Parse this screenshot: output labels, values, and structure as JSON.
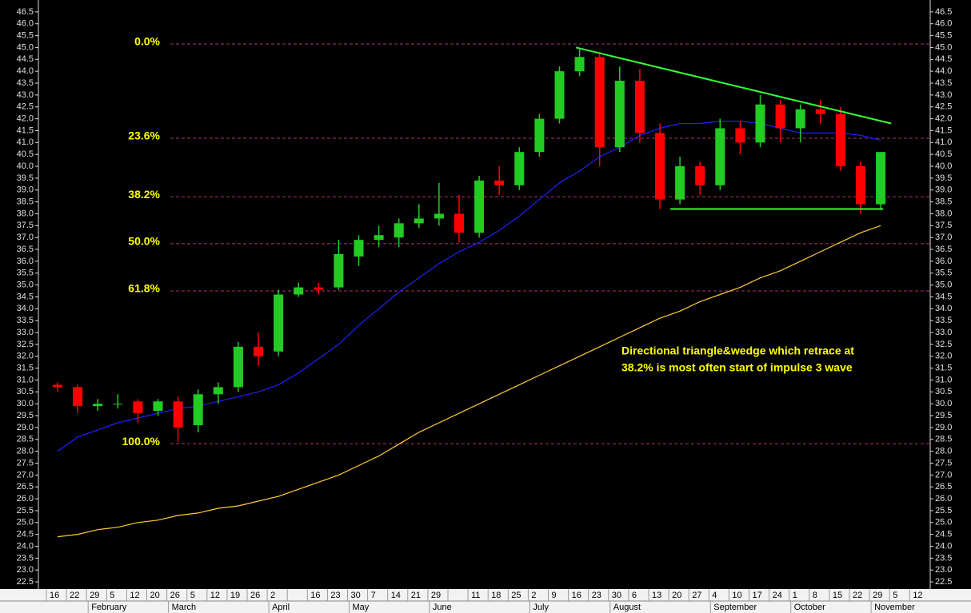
{
  "chart_data": {
    "type": "candlestick",
    "categories": [
      "16",
      "22",
      "29",
      "5",
      "12",
      "20",
      "26",
      "5",
      "12",
      "19",
      "26",
      "2",
      null,
      "16",
      "23",
      "30",
      "7",
      "14",
      "21",
      "29",
      null,
      "11",
      "18",
      "25",
      "2",
      "9",
      "16",
      "23",
      "30",
      "6",
      "13",
      "20",
      "27",
      "4",
      "10",
      "17",
      "24",
      "1",
      "8",
      "15",
      "22",
      "29",
      "5",
      "12"
    ],
    "months": [
      null,
      null,
      "February",
      null,
      null,
      null,
      "March",
      null,
      null,
      null,
      null,
      "April",
      null,
      null,
      null,
      "May",
      null,
      null,
      null,
      "June",
      null,
      null,
      null,
      null,
      "July",
      null,
      null,
      null,
      "August",
      null,
      null,
      null,
      null,
      "September",
      null,
      null,
      null,
      "October",
      null,
      null,
      null,
      "November",
      null,
      null
    ],
    "open": [
      30.8,
      30.7,
      29.9,
      30.0,
      30.1,
      29.7,
      30.1,
      29.1,
      30.4,
      30.7,
      32.4,
      32.2,
      34.6,
      34.9,
      34.9,
      36.2,
      36.9,
      37.0,
      37.6,
      37.8,
      38.0,
      37.2,
      39.4,
      39.2,
      40.6,
      42.0,
      44.0,
      44.6,
      40.8,
      43.6,
      41.4,
      38.6,
      40.0,
      39.2,
      41.6,
      41.0,
      42.6,
      41.6,
      42.4,
      42.2,
      40.0,
      38.4,
      null,
      null
    ],
    "high": [
      30.9,
      30.8,
      30.2,
      30.4,
      30.2,
      30.2,
      30.3,
      30.6,
      30.9,
      32.6,
      33.0,
      34.8,
      35.1,
      35.1,
      36.9,
      37.1,
      37.5,
      37.8,
      38.4,
      39.3,
      38.8,
      39.6,
      40.0,
      40.8,
      42.2,
      44.2,
      45.0,
      44.8,
      44.2,
      44.1,
      41.8,
      40.4,
      40.2,
      42.0,
      41.9,
      43.0,
      42.8,
      42.6,
      42.8,
      42.5,
      40.2,
      40.6,
      null,
      null
    ],
    "low": [
      30.5,
      29.6,
      29.7,
      29.8,
      29.2,
      29.5,
      28.4,
      28.8,
      30.0,
      30.5,
      31.6,
      32.0,
      34.5,
      34.6,
      34.8,
      35.8,
      36.6,
      36.6,
      37.4,
      37.5,
      36.8,
      37.0,
      38.8,
      39.0,
      40.4,
      41.8,
      43.8,
      40.0,
      40.6,
      41.0,
      38.2,
      38.4,
      38.8,
      39.0,
      40.5,
      40.8,
      41.0,
      41.0,
      41.8,
      39.8,
      38.0,
      38.2,
      null,
      null
    ],
    "close": [
      30.7,
      29.9,
      30.0,
      30.0,
      29.6,
      30.1,
      29.0,
      30.4,
      30.7,
      32.4,
      32.0,
      34.6,
      34.9,
      34.8,
      36.3,
      36.9,
      37.1,
      37.6,
      37.8,
      38.0,
      37.2,
      39.4,
      39.2,
      40.6,
      42.0,
      44.0,
      44.6,
      40.8,
      43.6,
      41.4,
      38.6,
      40.0,
      39.2,
      41.6,
      41.0,
      42.6,
      41.6,
      42.4,
      42.2,
      40.0,
      38.4,
      40.6,
      null,
      null
    ],
    "up_color": "#22cc22",
    "down_color": "#ff0000",
    "overlays": [
      {
        "color": "#2020ff",
        "values": [
          28.0,
          28.6,
          28.9,
          29.2,
          29.4,
          29.6,
          29.8,
          29.9,
          30.1,
          30.3,
          30.5,
          30.8,
          31.3,
          31.9,
          32.5,
          33.3,
          34.0,
          34.7,
          35.3,
          35.9,
          36.4,
          36.8,
          37.3,
          37.9,
          38.6,
          39.3,
          39.8,
          40.4,
          40.8,
          41.3,
          41.6,
          41.8,
          41.8,
          41.9,
          41.9,
          41.8,
          41.6,
          41.4,
          41.4,
          41.4,
          41.3,
          41.1,
          null,
          null
        ]
      },
      {
        "color": "#ffcc33",
        "values": [
          24.4,
          24.5,
          24.7,
          24.8,
          25.0,
          25.1,
          25.3,
          25.4,
          25.6,
          25.7,
          25.9,
          26.1,
          26.4,
          26.7,
          27.0,
          27.4,
          27.8,
          28.3,
          28.8,
          29.2,
          29.6,
          30.0,
          30.4,
          30.8,
          31.2,
          31.6,
          32.0,
          32.4,
          32.8,
          33.2,
          33.6,
          33.9,
          34.3,
          34.6,
          34.9,
          35.3,
          35.6,
          36.0,
          36.4,
          36.8,
          37.2,
          37.5,
          null,
          null
        ]
      }
    ],
    "fib_levels": [
      {
        "label": "0.0%",
        "price": 45.15
      },
      {
        "label": "23.6%",
        "price": 41.18
      },
      {
        "label": "38.2%",
        "price": 38.72
      },
      {
        "label": "50.0%",
        "price": 36.74
      },
      {
        "label": "61.8%",
        "price": 34.75
      },
      {
        "label": "100.0%",
        "price": 28.32
      }
    ],
    "fib_color": "#b0307a",
    "fib_label_color": "#ffff00",
    "trendlines": [
      {
        "x": [
          26.3,
          42.0
        ],
        "y": [
          45.0,
          41.8
        ]
      },
      {
        "x": [
          31.0,
          41.6
        ],
        "y": [
          38.2,
          38.2
        ]
      }
    ],
    "trend_color": "#33ff33",
    "annotation": [
      "Directional triangle&wedge which retrace at",
      "38.2% is most often start of impulse 3 wave"
    ],
    "ylim": [
      22.2,
      47.0
    ],
    "yticks": [
      22.5,
      {
        "value": 23,
        "label": "23.0"
      },
      23.5,
      {
        "value": 24,
        "label": "24.0"
      },
      24.5,
      {
        "value": 25,
        "label": "25.0"
      },
      25.5,
      {
        "value": 26,
        "label": "26.0"
      },
      26.5,
      {
        "value": 27,
        "label": "27.0"
      },
      27.5,
      {
        "value": 28,
        "label": "28.0"
      },
      28.5,
      {
        "value": 29,
        "label": "29.0"
      },
      29.5,
      {
        "value": 30,
        "label": "30.0"
      },
      30.5,
      {
        "value": 31,
        "label": "31.0"
      },
      31.5,
      {
        "value": 32,
        "label": "32.0"
      },
      32.5,
      {
        "value": 33,
        "label": "33.0"
      },
      33.5,
      {
        "value": 34,
        "label": "34.0"
      },
      34.5,
      {
        "value": 35,
        "label": "35.0"
      },
      35.5,
      {
        "value": 36,
        "label": "36.0"
      },
      36.5,
      {
        "value": 37,
        "label": "37.0"
      },
      37.5,
      {
        "value": 38,
        "label": "38.0"
      },
      38.5,
      {
        "value": 39,
        "label": "39.0"
      },
      39.5,
      {
        "value": 40,
        "label": "40.0"
      },
      40.5,
      {
        "value": 41,
        "label": "41.0"
      },
      41.5,
      {
        "value": 42,
        "label": "42.0"
      },
      42.5,
      {
        "value": 43,
        "label": "43.0"
      },
      43.5,
      {
        "value": 44,
        "label": "44.0"
      },
      44.5,
      {
        "value": 45,
        "label": "45.0"
      },
      45.5,
      {
        "value": 46,
        "label": "46.0"
      },
      46.5
    ]
  }
}
